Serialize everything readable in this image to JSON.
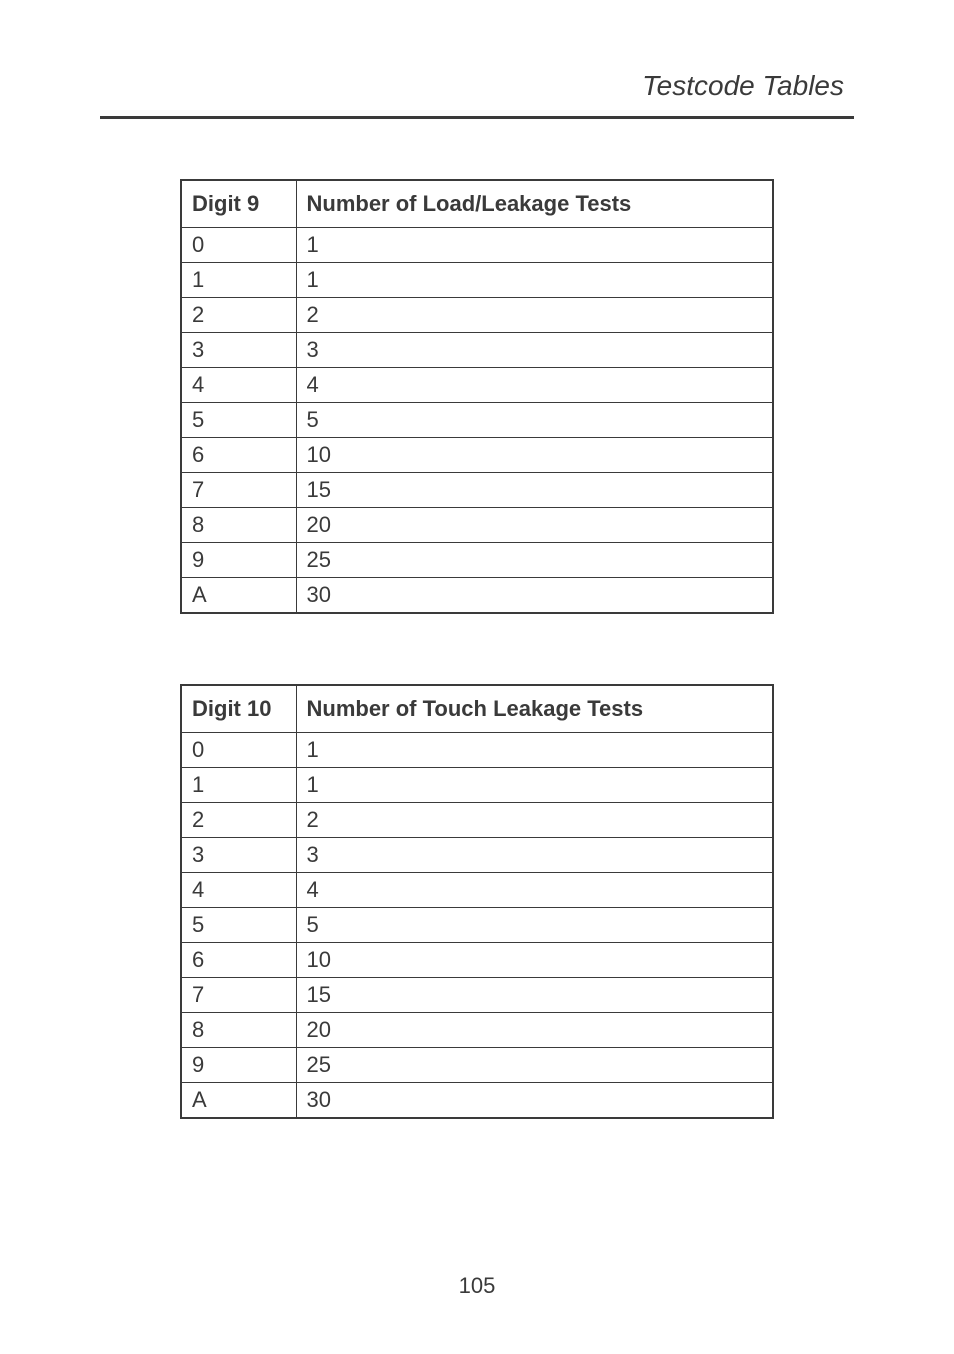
{
  "header": {
    "title": "Testcode Tables"
  },
  "table1": {
    "headers": {
      "col1": "Digit 9",
      "col2": "Number of Load/Leakage Tests"
    },
    "rows": [
      {
        "digit": "0",
        "value": "1"
      },
      {
        "digit": "1",
        "value": "1"
      },
      {
        "digit": "2",
        "value": "2"
      },
      {
        "digit": "3",
        "value": "3"
      },
      {
        "digit": "4",
        "value": "4"
      },
      {
        "digit": "5",
        "value": "5"
      },
      {
        "digit": "6",
        "value": "10"
      },
      {
        "digit": "7",
        "value": "15"
      },
      {
        "digit": "8",
        "value": "20"
      },
      {
        "digit": "9",
        "value": "25"
      },
      {
        "digit": "A",
        "value": "30"
      }
    ]
  },
  "table2": {
    "headers": {
      "col1": "Digit 10",
      "col2": "Number of Touch Leakage Tests"
    },
    "rows": [
      {
        "digit": "0",
        "value": "1"
      },
      {
        "digit": "1",
        "value": "1"
      },
      {
        "digit": "2",
        "value": "2"
      },
      {
        "digit": "3",
        "value": "3"
      },
      {
        "digit": "4",
        "value": "4"
      },
      {
        "digit": "5",
        "value": "5"
      },
      {
        "digit": "6",
        "value": "10"
      },
      {
        "digit": "7",
        "value": "15"
      },
      {
        "digit": "8",
        "value": "20"
      },
      {
        "digit": "9",
        "value": "25"
      },
      {
        "digit": "A",
        "value": "30"
      }
    ]
  },
  "footer": {
    "page_number": "105"
  }
}
